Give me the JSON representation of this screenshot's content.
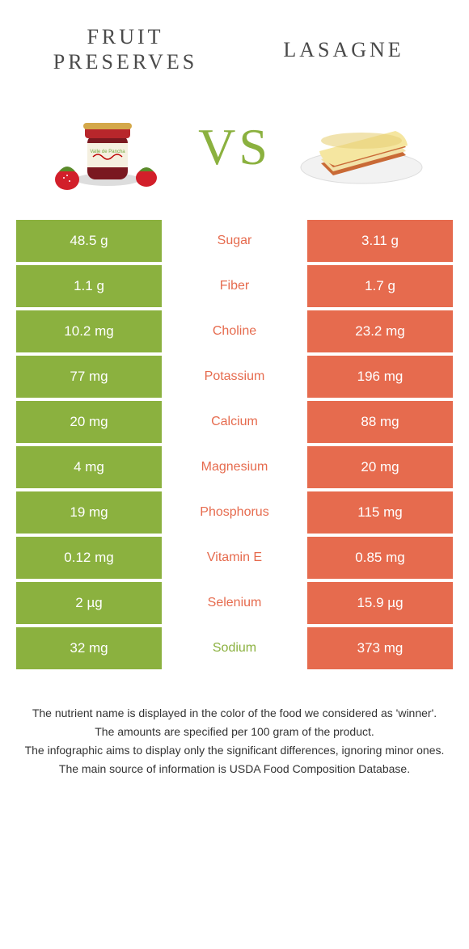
{
  "colors": {
    "green": "#8bb13f",
    "orange": "#e66b4e",
    "text": "#333333",
    "bg": "#ffffff"
  },
  "foods": {
    "left": {
      "title_line1": "Fruit",
      "title_line2": "preserves"
    },
    "right": {
      "title_line1": "Lasagne",
      "title_line2": ""
    }
  },
  "vs_label": "VS",
  "rows": [
    {
      "left": "48.5 g",
      "name": "Sugar",
      "name_color": "orange",
      "right": "3.11 g"
    },
    {
      "left": "1.1 g",
      "name": "Fiber",
      "name_color": "orange",
      "right": "1.7 g"
    },
    {
      "left": "10.2 mg",
      "name": "Choline",
      "name_color": "orange",
      "right": "23.2 mg"
    },
    {
      "left": "77 mg",
      "name": "Potassium",
      "name_color": "orange",
      "right": "196 mg"
    },
    {
      "left": "20 mg",
      "name": "Calcium",
      "name_color": "orange",
      "right": "88 mg"
    },
    {
      "left": "4 mg",
      "name": "Magnesium",
      "name_color": "orange",
      "right": "20 mg"
    },
    {
      "left": "19 mg",
      "name": "Phosphorus",
      "name_color": "orange",
      "right": "115 mg"
    },
    {
      "left": "0.12 mg",
      "name": "Vitamin E",
      "name_color": "orange",
      "right": "0.85 mg"
    },
    {
      "left": "2 µg",
      "name": "Selenium",
      "name_color": "orange",
      "right": "15.9 µg"
    },
    {
      "left": "32 mg",
      "name": "Sodium",
      "name_color": "green",
      "right": "373 mg"
    }
  ],
  "footnotes": [
    "The nutrient name is displayed in the color of the food we considered as 'winner'.",
    "The amounts are specified per 100 gram of the product.",
    "The infographic aims to display only the significant differences, ignoring minor ones.",
    "The main source of information is USDA Food Composition Database."
  ]
}
